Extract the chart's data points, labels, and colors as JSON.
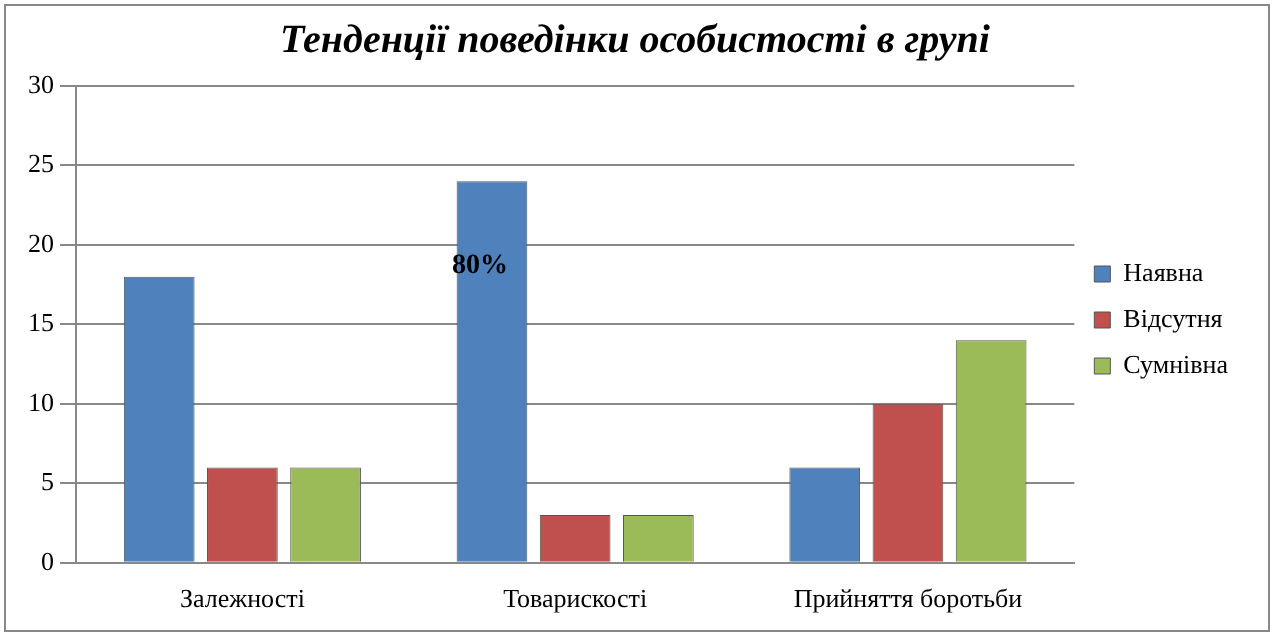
{
  "chart_data": {
    "type": "bar",
    "title": "Тенденції поведінки особистості в групі",
    "categories": [
      "Залежності",
      "Товарискості",
      "Прийняття боротьби"
    ],
    "series": [
      {
        "name": "Наявна",
        "color": "#4f81bd",
        "values": [
          18,
          24,
          6
        ]
      },
      {
        "name": "Відсутня",
        "color": "#c0504d",
        "values": [
          6,
          3,
          10
        ]
      },
      {
        "name": "Сумнівна",
        "color": "#9bbb59",
        "values": [
          6,
          3,
          14
        ]
      }
    ],
    "ylim": [
      0,
      30
    ],
    "yticks": [
      0,
      5,
      10,
      15,
      20,
      25,
      30
    ],
    "grid": "y",
    "legend": "right",
    "annotations": [
      "80%"
    ]
  }
}
